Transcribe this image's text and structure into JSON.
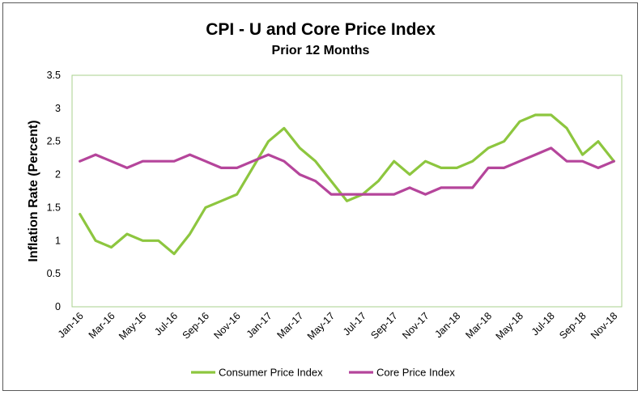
{
  "chart_data": {
    "type": "line",
    "title": "CPI - U and Core Price Index",
    "subtitle": "Prior 12 Months",
    "xlabel": "",
    "ylabel": "Inflation Rate (Percent)",
    "ylim": [
      0,
      3.5
    ],
    "yticks": [
      "0",
      "0.5",
      "1",
      "1.5",
      "2",
      "2.5",
      "3",
      "3.5"
    ],
    "categories": [
      "Jan-16",
      "Feb-16",
      "Mar-16",
      "Apr-16",
      "May-16",
      "Jun-16",
      "Jul-16",
      "Aug-16",
      "Sep-16",
      "Oct-16",
      "Nov-16",
      "Dec-16",
      "Jan-17",
      "Feb-17",
      "Mar-17",
      "Apr-17",
      "May-17",
      "Jun-17",
      "Jul-17",
      "Aug-17",
      "Sep-17",
      "Oct-17",
      "Nov-17",
      "Dec-17",
      "Jan-18",
      "Feb-18",
      "Mar-18",
      "Apr-18",
      "May-18",
      "Jun-18",
      "Jul-18",
      "Aug-18",
      "Sep-18",
      "Oct-18",
      "Nov-18"
    ],
    "xtick_labels": [
      "Jan-16",
      "Mar-16",
      "May-16",
      "Jul-16",
      "Sep-16",
      "Nov-16",
      "Jan-17",
      "Mar-17",
      "May-17",
      "Jul-17",
      "Sep-17",
      "Nov-17",
      "Jan-18",
      "Mar-18",
      "May-18",
      "Jul-18",
      "Sep-18",
      "Nov-18"
    ],
    "grid": false,
    "legend_position": "bottom",
    "series": [
      {
        "name": "Consumer Price Index",
        "color": "#8dc63f",
        "values": [
          1.4,
          1.0,
          0.9,
          1.1,
          1.0,
          1.0,
          0.8,
          1.1,
          1.5,
          1.6,
          1.7,
          2.1,
          2.5,
          2.7,
          2.4,
          2.2,
          1.9,
          1.6,
          1.7,
          1.9,
          2.2,
          2.0,
          2.2,
          2.1,
          2.1,
          2.2,
          2.4,
          2.5,
          2.8,
          2.9,
          2.9,
          2.7,
          2.3,
          2.5,
          2.2
        ]
      },
      {
        "name": "Core Price Index",
        "color": "#b5459b",
        "values": [
          2.2,
          2.3,
          2.2,
          2.1,
          2.2,
          2.2,
          2.2,
          2.3,
          2.2,
          2.1,
          2.1,
          2.2,
          2.3,
          2.2,
          2.0,
          1.9,
          1.7,
          1.7,
          1.7,
          1.7,
          1.7,
          1.8,
          1.7,
          1.8,
          1.8,
          1.8,
          2.1,
          2.1,
          2.2,
          2.3,
          2.4,
          2.2,
          2.2,
          2.1,
          2.2
        ]
      }
    ]
  }
}
